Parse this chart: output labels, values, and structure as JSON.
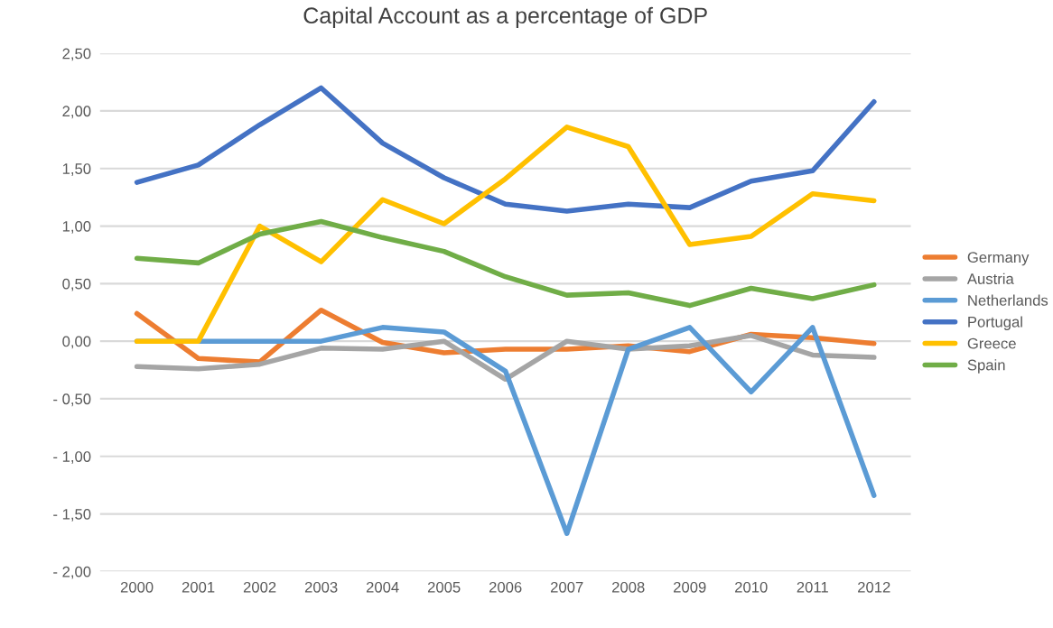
{
  "chart_data": {
    "type": "line",
    "title": "Capital Account as a percentage of GDP",
    "categories": [
      "2000",
      "2001",
      "2002",
      "2003",
      "2004",
      "2005",
      "2006",
      "2007",
      "2008",
      "2009",
      "2010",
      "2011",
      "2012"
    ],
    "series": [
      {
        "name": "Germany",
        "color": "#ed7d31",
        "values": [
          0.24,
          -0.15,
          -0.18,
          0.27,
          -0.01,
          -0.1,
          -0.07,
          -0.07,
          -0.04,
          -0.09,
          0.06,
          0.03,
          -0.02
        ]
      },
      {
        "name": "Austria",
        "color": "#a5a5a5",
        "values": [
          -0.22,
          -0.24,
          -0.2,
          -0.06,
          -0.07,
          0.0,
          -0.33,
          0.0,
          -0.07,
          -0.04,
          0.05,
          -0.12,
          -0.14
        ]
      },
      {
        "name": "Netherlands",
        "color": "#5b9bd5",
        "values": [
          0.0,
          0.0,
          0.0,
          0.0,
          0.12,
          0.08,
          -0.26,
          -1.67,
          -0.07,
          0.12,
          -0.44,
          0.12,
          -1.34
        ]
      },
      {
        "name": "Portugal",
        "color": "#4472c4",
        "values": [
          1.38,
          1.53,
          1.88,
          2.2,
          1.72,
          1.42,
          1.19,
          1.13,
          1.19,
          1.16,
          1.39,
          1.48,
          2.08
        ]
      },
      {
        "name": "Greece",
        "color": "#ffc000",
        "values": [
          0.0,
          0.0,
          1.0,
          0.69,
          1.23,
          1.02,
          1.41,
          1.86,
          1.69,
          0.84,
          0.91,
          1.28,
          1.22
        ]
      },
      {
        "name": "Spain",
        "color": "#70ad47",
        "values": [
          0.72,
          0.68,
          0.93,
          1.04,
          0.9,
          0.78,
          0.56,
          0.4,
          0.42,
          0.31,
          0.46,
          0.37,
          0.49
        ]
      }
    ],
    "ylim": [
      -2,
      2.5
    ],
    "yticks": [
      {
        "value": -2,
        "label": "- 2,00"
      },
      {
        "value": -1.5,
        "label": "- 1,50"
      },
      {
        "value": -1,
        "label": "- 1,00"
      },
      {
        "value": -0.5,
        "label": "- 0,50"
      },
      {
        "value": 0,
        "label": "0,00"
      },
      {
        "value": 0.5,
        "label": "0,50"
      },
      {
        "value": 1,
        "label": "1,00"
      },
      {
        "value": 1.5,
        "label": "1,50"
      },
      {
        "value": 2,
        "label": "2,00"
      },
      {
        "value": 2.5,
        "label": "2,50"
      }
    ],
    "grid": "y",
    "legend": "right",
    "marker": "none",
    "line_style": "solid"
  }
}
